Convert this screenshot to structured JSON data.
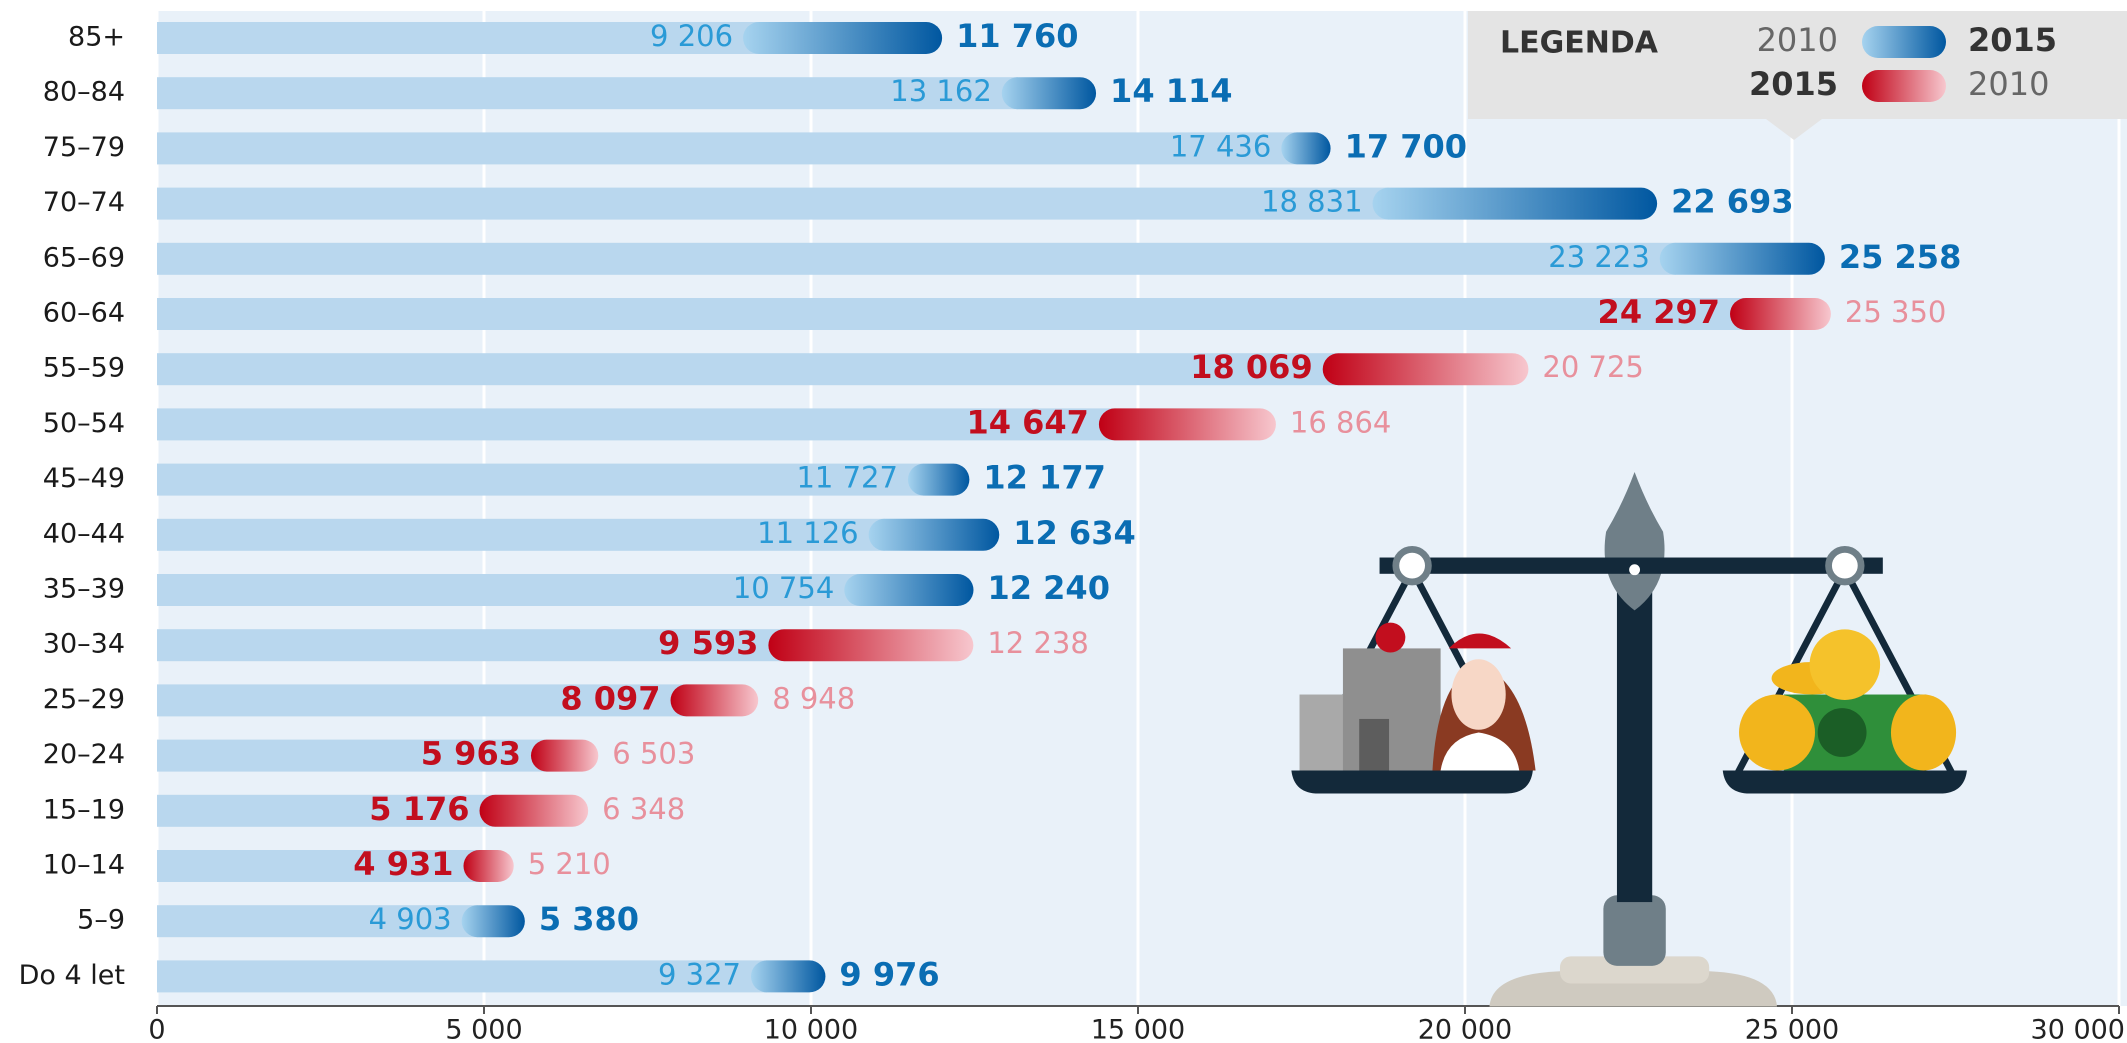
{
  "chart_data": {
    "type": "bar",
    "orientation": "horizontal",
    "categories": [
      "85+",
      "80–84",
      "75–79",
      "70–74",
      "65–69",
      "60–64",
      "55–59",
      "50–54",
      "45–49",
      "40–44",
      "35–39",
      "30–34",
      "25–29",
      "20–24",
      "15–19",
      "10–14",
      "5–9",
      "Do 4 let"
    ],
    "series": [
      {
        "name": "2010",
        "values": [
          9206,
          13162,
          17436,
          18831,
          23223,
          25350,
          20725,
          16864,
          11727,
          11126,
          10754,
          12238,
          8948,
          6503,
          6348,
          5210,
          4903,
          9327
        ],
        "value_labels": [
          "9 206",
          "13 162",
          "17 436",
          "18 831",
          "23 223",
          "25 350",
          "20 725",
          "16 864",
          "11 727",
          "11 126",
          "10 754",
          "12 238",
          "8 948",
          "6 503",
          "6 348",
          "5 210",
          "4 903",
          "9 327"
        ]
      },
      {
        "name": "2015",
        "values": [
          11760,
          14114,
          17700,
          22693,
          25258,
          24297,
          18069,
          14647,
          12177,
          12634,
          12240,
          9593,
          8097,
          5963,
          5176,
          4931,
          5380,
          9976
        ],
        "value_labels": [
          "11 760",
          "14 114",
          "17 700",
          "22 693",
          "25 258",
          "24 297",
          "18 069",
          "14 647",
          "12 177",
          "12 634",
          "12 240",
          "9 593",
          "8 097",
          "5 963",
          "5 176",
          "4 931",
          "5 380",
          "9 976"
        ]
      }
    ],
    "increase_color": "#0a6db3",
    "increase_light_color": "#2a9ad6",
    "decrease_color": "#c20e1e",
    "decrease_light_color": "#e8909c",
    "base_color": "#b9d7ee",
    "xlim": [
      0,
      30000
    ],
    "xticks": [
      0,
      {
        "value": 5000,
        "label": "5 000"
      },
      {
        "value": 10000,
        "label": "10 000"
      },
      {
        "value": 15000,
        "label": "15 000"
      },
      {
        "value": 20000,
        "label": "20 000"
      },
      {
        "value": 25000,
        "label": "25 000"
      },
      {
        "value": 30000,
        "label": "30 000"
      }
    ],
    "grid": true,
    "legend": {
      "title": "LEGENDA",
      "position": "top-right"
    }
  }
}
